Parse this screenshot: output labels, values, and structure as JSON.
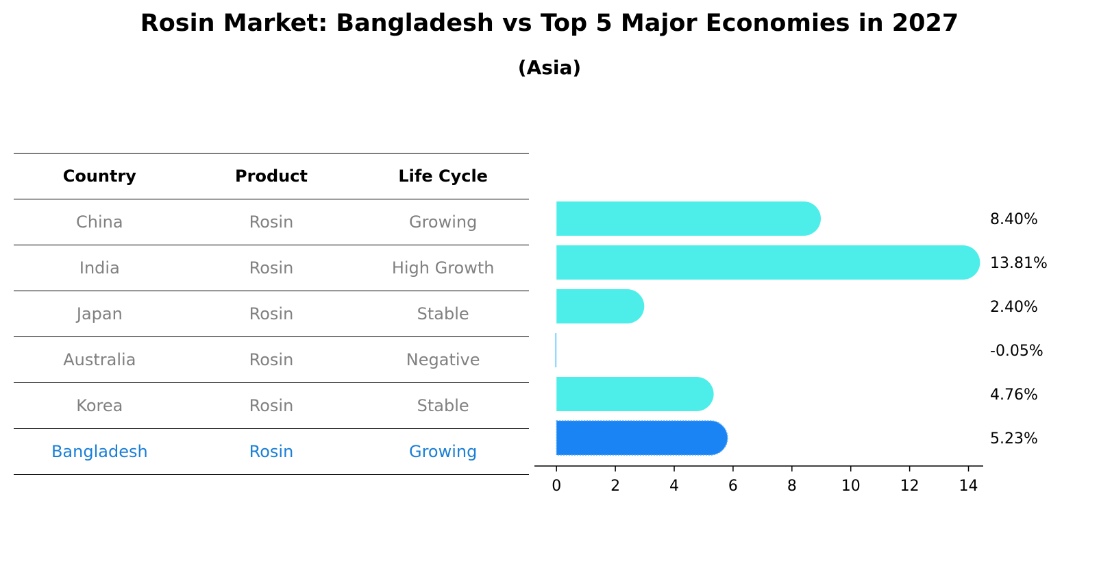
{
  "header": {
    "title": "Rosin Market: Bangladesh vs Top 5 Major Economies in 2027",
    "subtitle": "(Asia)"
  },
  "table": {
    "columns": [
      "Country",
      "Product",
      "Life Cycle"
    ],
    "rows": [
      {
        "country": "China",
        "product": "Rosin",
        "life_cycle": "Growing"
      },
      {
        "country": "India",
        "product": "Rosin",
        "life_cycle": "High Growth"
      },
      {
        "country": "Japan",
        "product": "Rosin",
        "life_cycle": "Stable"
      },
      {
        "country": "Australia",
        "product": "Rosin",
        "life_cycle": "Negative"
      },
      {
        "country": "Korea",
        "product": "Rosin",
        "life_cycle": "Stable"
      },
      {
        "country": "Bangladesh",
        "product": "Rosin",
        "life_cycle": "Growing",
        "highlight": true
      }
    ]
  },
  "chart_data": {
    "type": "bar",
    "orientation": "horizontal",
    "categories": [
      "China",
      "India",
      "Japan",
      "Australia",
      "Korea",
      "Bangladesh"
    ],
    "values": [
      8.4,
      13.81,
      2.4,
      -0.05,
      4.76,
      5.23
    ],
    "value_labels": [
      "8.40%",
      "13.81%",
      "2.40%",
      "-0.05%",
      "4.76%",
      "5.23%"
    ],
    "xlim": [
      -0.75,
      14.5
    ],
    "xticks": [
      0,
      2,
      4,
      6,
      8,
      10,
      12,
      14
    ],
    "highlight_category": "Bangladesh",
    "colors": {
      "default": "#4deeea",
      "highlight": "#1a84f5"
    }
  }
}
